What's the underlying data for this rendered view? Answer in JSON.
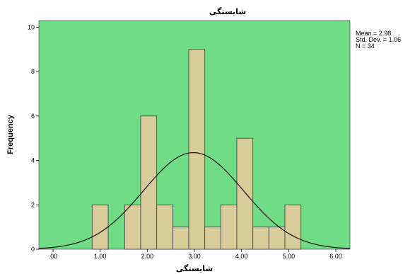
{
  "chart_data": {
    "type": "bar",
    "title": "شایستگی",
    "xlabel": "شایستگی",
    "ylabel": "Frequency",
    "xlim": [
      -0.3,
      6.3
    ],
    "ylim": [
      0,
      10.3
    ],
    "x_ticks": [
      0,
      1,
      2,
      3,
      4,
      5,
      6
    ],
    "x_tick_labels": [
      ".00",
      "1.00",
      "2.00",
      "3.00",
      "4.00",
      "5.00",
      "6.00"
    ],
    "y_ticks": [
      0,
      2,
      4,
      6,
      8,
      10
    ],
    "y_tick_labels": [
      "0",
      "2",
      "4",
      "6",
      "8",
      "10"
    ],
    "bin_width": 0.34,
    "bins": [
      {
        "x0": 0.83,
        "count": 2
      },
      {
        "x0": 1.52,
        "count": 2
      },
      {
        "x0": 1.86,
        "count": 6
      },
      {
        "x0": 2.2,
        "count": 2
      },
      {
        "x0": 2.54,
        "count": 1
      },
      {
        "x0": 2.88,
        "count": 9
      },
      {
        "x0": 3.22,
        "count": 1
      },
      {
        "x0": 3.56,
        "count": 2
      },
      {
        "x0": 3.9,
        "count": 5
      },
      {
        "x0": 4.24,
        "count": 1
      },
      {
        "x0": 4.58,
        "count": 1
      },
      {
        "x0": 4.92,
        "count": 2
      }
    ],
    "normal_curve": {
      "mean": 2.98,
      "std": 1.06,
      "n": 34
    },
    "stats": [
      "Mean = 2.98",
      "Std. Dev. = 1.06",
      "N = 34"
    ],
    "colors": {
      "plot_background": "#70dd86",
      "bar_fill": "#d8cc9b",
      "bar_stroke": "#3a3a3a",
      "curve": "#111111"
    }
  }
}
